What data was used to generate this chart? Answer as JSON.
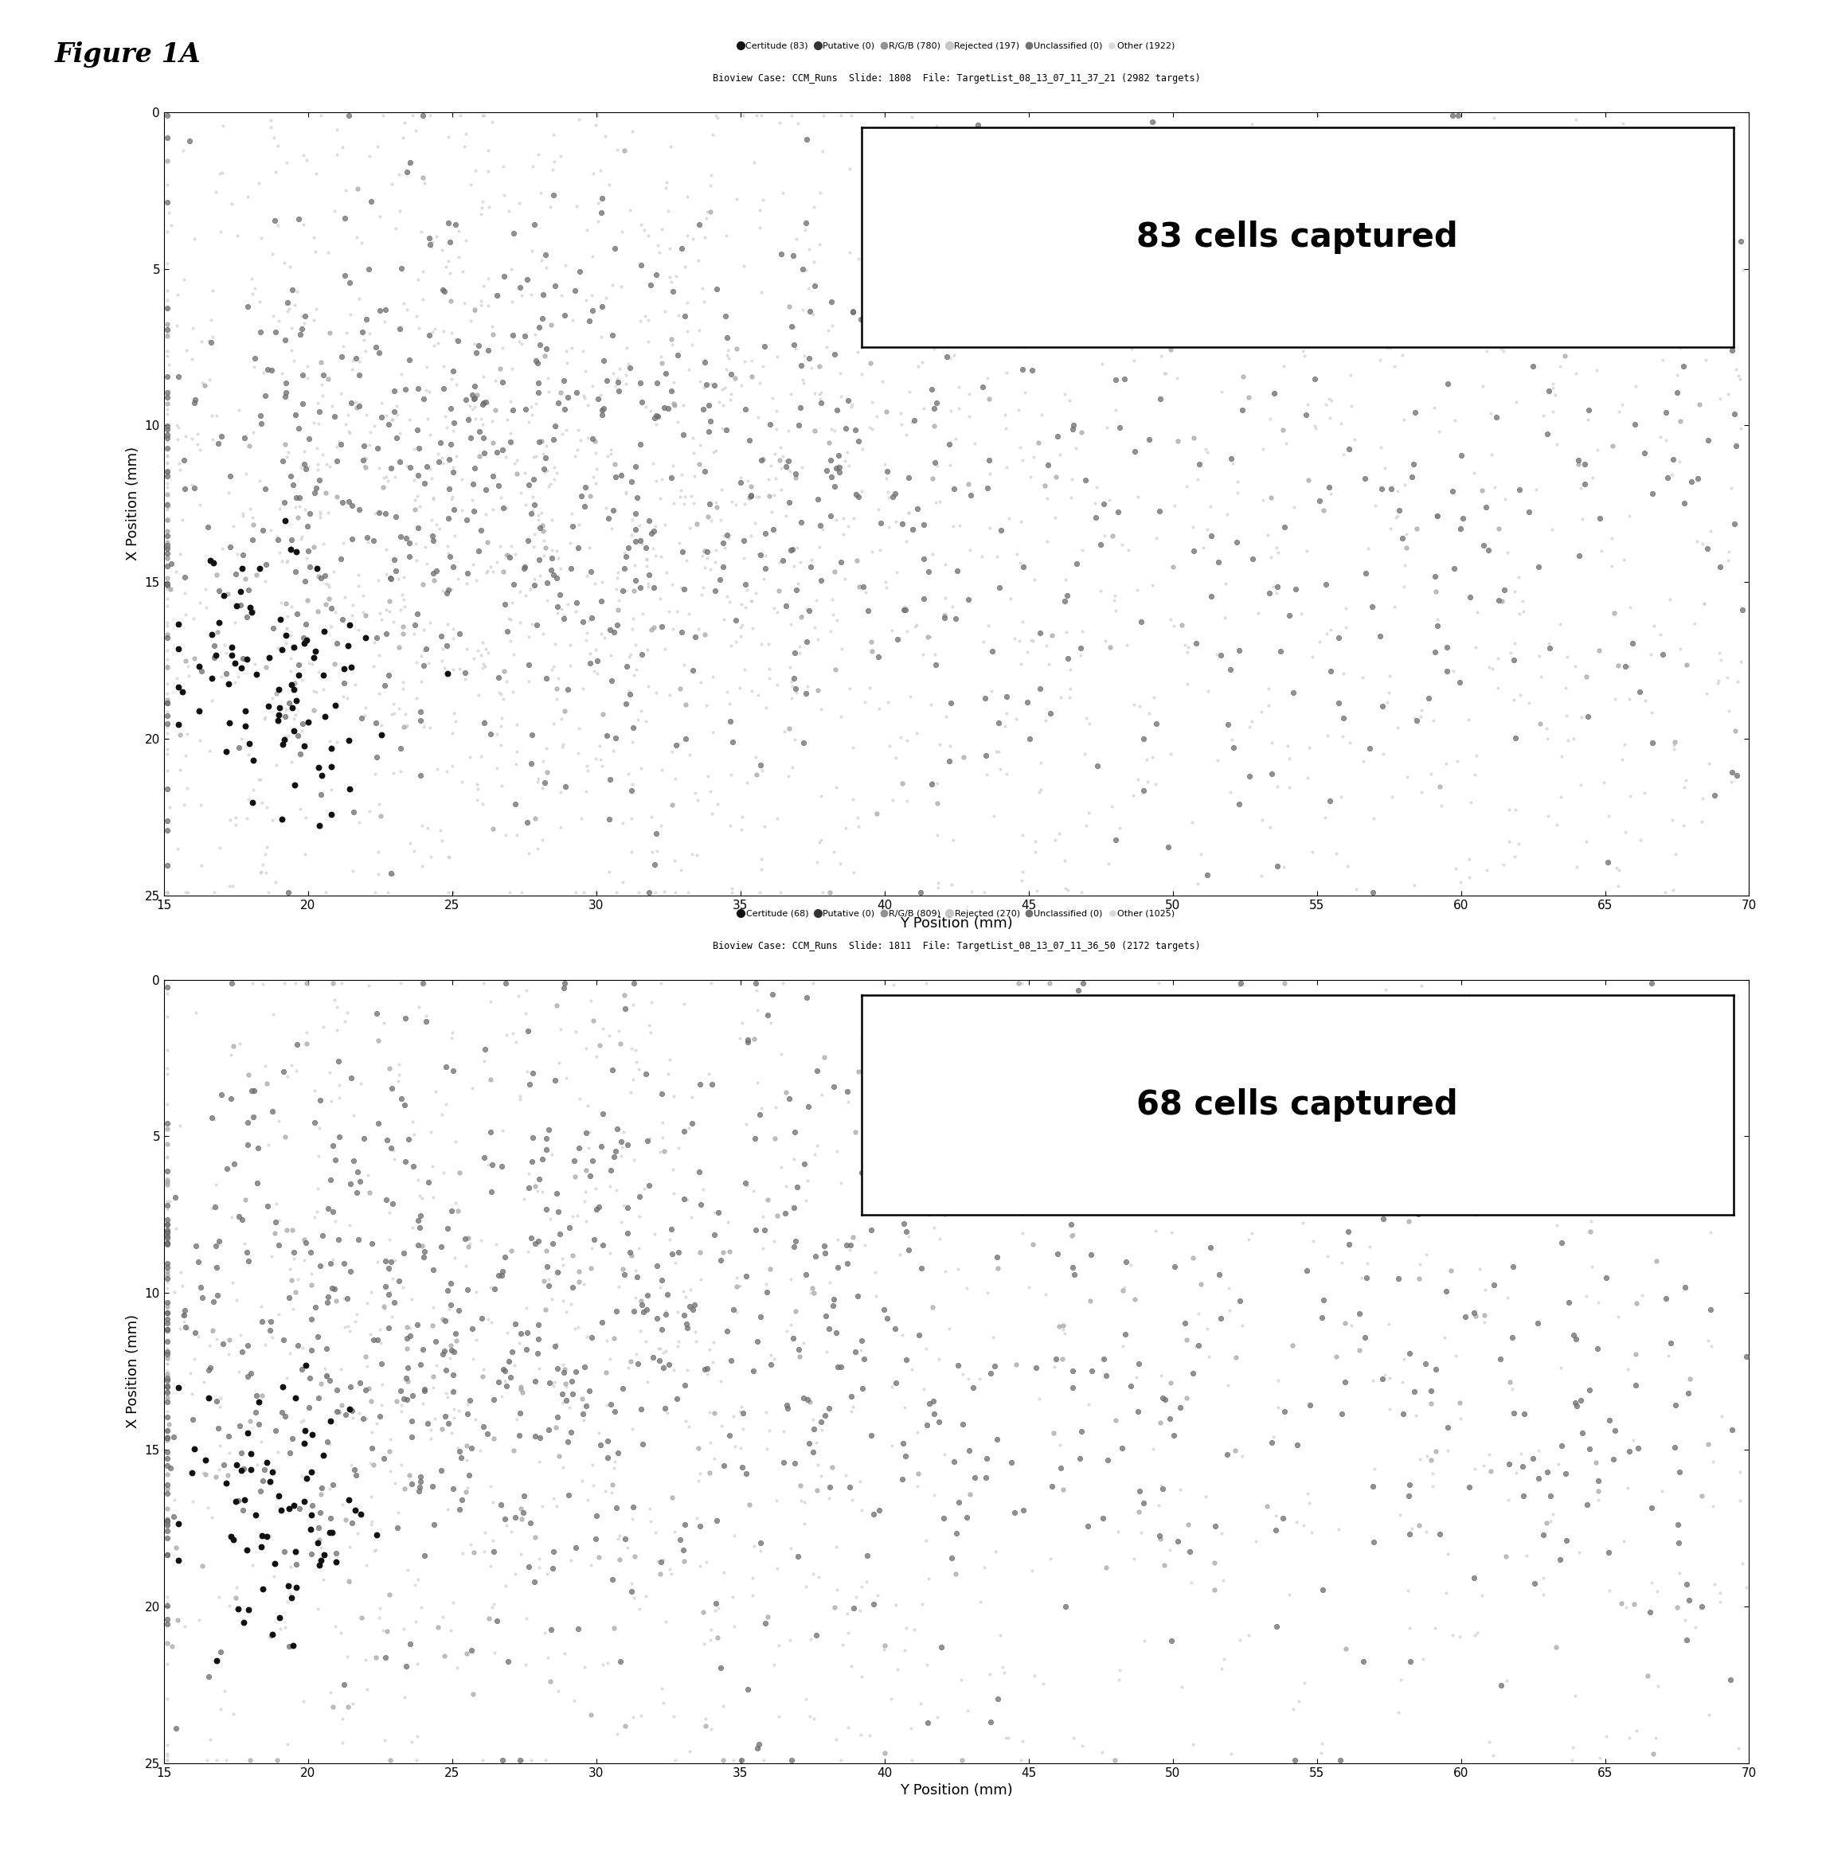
{
  "fig_label": "Figure 1A",
  "plot1": {
    "title_line1": "Bioview Case: CCM_Runs  Slide: 1808  File: TargetList_08_13_07_11_37_21 (2982 targets)",
    "legend_text": [
      "Certitude (83)",
      "Putative (0)",
      "R/G/B (780)",
      "Rejected (197)",
      "Unclassified (0)",
      "Other (1922)"
    ],
    "annotation": "83 cells captured",
    "xlim": [
      15,
      70
    ],
    "ylim": [
      25,
      0
    ],
    "xlabel": "Y Position (mm)",
    "ylabel": "X Position (mm)",
    "xticks": [
      15,
      20,
      25,
      30,
      35,
      40,
      45,
      50,
      55,
      60,
      65,
      70
    ],
    "yticks": [
      0,
      5,
      10,
      15,
      20,
      25
    ],
    "certitude_n": 83,
    "putative_n": 0,
    "rgb_n": 780,
    "rejected_n": 197,
    "unclassified_n": 0,
    "other_n": 1922
  },
  "plot2": {
    "title_line1": "Bioview Case: CCM_Runs  Slide: 1811  File: TargetList_08_13_07_11_36_50 (2172 targets)",
    "legend_text": [
      "Certitude (68)",
      "Putative (0)",
      "R/G/B (809)",
      "Rejected (270)",
      "Unclassified (0)",
      "Other (1025)"
    ],
    "annotation": "68 cells captured",
    "xlim": [
      15,
      70
    ],
    "ylim": [
      25,
      0
    ],
    "xlabel": "Y Position (mm)",
    "ylabel": "X Position (mm)",
    "xticks": [
      15,
      20,
      25,
      30,
      35,
      40,
      45,
      50,
      55,
      60,
      65,
      70
    ],
    "yticks": [
      0,
      5,
      10,
      15,
      20,
      25
    ],
    "certitude_n": 68,
    "putative_n": 0,
    "rgb_n": 809,
    "rejected_n": 270,
    "unclassified_n": 0,
    "other_n": 1025
  },
  "colors": {
    "certitude": "#111111",
    "putative": "#333333",
    "rgb": "#777777",
    "rejected": "#aaaaaa",
    "unclassified": "#555555",
    "other": "#cccccc"
  },
  "legend_colors": [
    "#111111",
    "#333333",
    "#888888",
    "#bbbbbb",
    "#666666",
    "#cccccc"
  ]
}
